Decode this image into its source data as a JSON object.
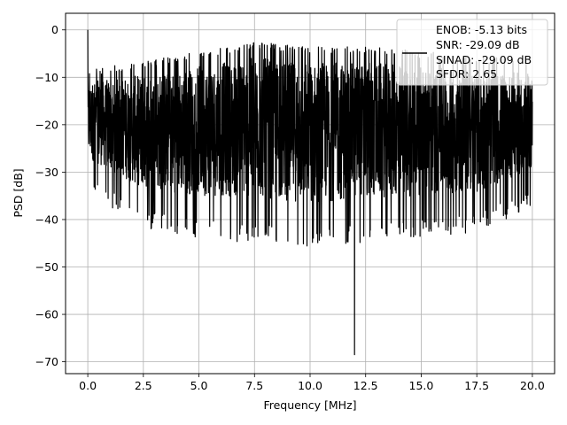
{
  "chart_data": {
    "type": "line",
    "title": "",
    "xlabel": "Frequency [MHz]",
    "ylabel": "PSD [dB]",
    "xlim": [
      -1.0,
      21.0
    ],
    "ylim": [
      -72.5,
      3.5
    ],
    "x_ticks": [
      0.0,
      2.5,
      5.0,
      7.5,
      10.0,
      12.5,
      15.0,
      17.5,
      20.0
    ],
    "x_tick_labels": [
      "0.0",
      "2.5",
      "5.0",
      "7.5",
      "10.0",
      "12.5",
      "15.0",
      "17.5",
      "20.0"
    ],
    "y_ticks": [
      0,
      -10,
      -20,
      -30,
      -40,
      -50,
      -60,
      -70
    ],
    "y_tick_labels": [
      "0",
      "−10",
      "−20",
      "−30",
      "−40",
      "−50",
      "−60",
      "−70"
    ],
    "grid": true,
    "legend_position": "top-right",
    "legend_entries": [
      "ENOB: -5.13 bits",
      "SNR: -29.09 dB",
      "SINAD: -29.09 dB",
      "SFDR: 2.65"
    ],
    "series": [
      {
        "color": "#000000",
        "x_range": [
          0.0,
          20.0
        ],
        "peaks": [
          {
            "x": 0.0,
            "y": 0.0
          },
          {
            "x": 12.0,
            "y": -68.5
          }
        ],
        "envelope_upper": [
          [
            0.0,
            -10.0
          ],
          [
            2.5,
            -8.0
          ],
          [
            5.0,
            -6.0
          ],
          [
            7.5,
            -4.0
          ],
          [
            10.0,
            -5.0
          ],
          [
            12.5,
            -5.0
          ],
          [
            15.0,
            -6.0
          ],
          [
            17.5,
            -7.0
          ],
          [
            20.0,
            -8.0
          ]
        ],
        "envelope_lower": [
          [
            0.0,
            -30.0
          ],
          [
            2.5,
            -38.0
          ],
          [
            5.0,
            -40.0
          ],
          [
            7.5,
            -41.0
          ],
          [
            10.0,
            -42.0
          ],
          [
            12.5,
            -41.0
          ],
          [
            15.0,
            -40.0
          ],
          [
            17.5,
            -39.0
          ],
          [
            20.0,
            -33.0
          ]
        ]
      }
    ]
  }
}
